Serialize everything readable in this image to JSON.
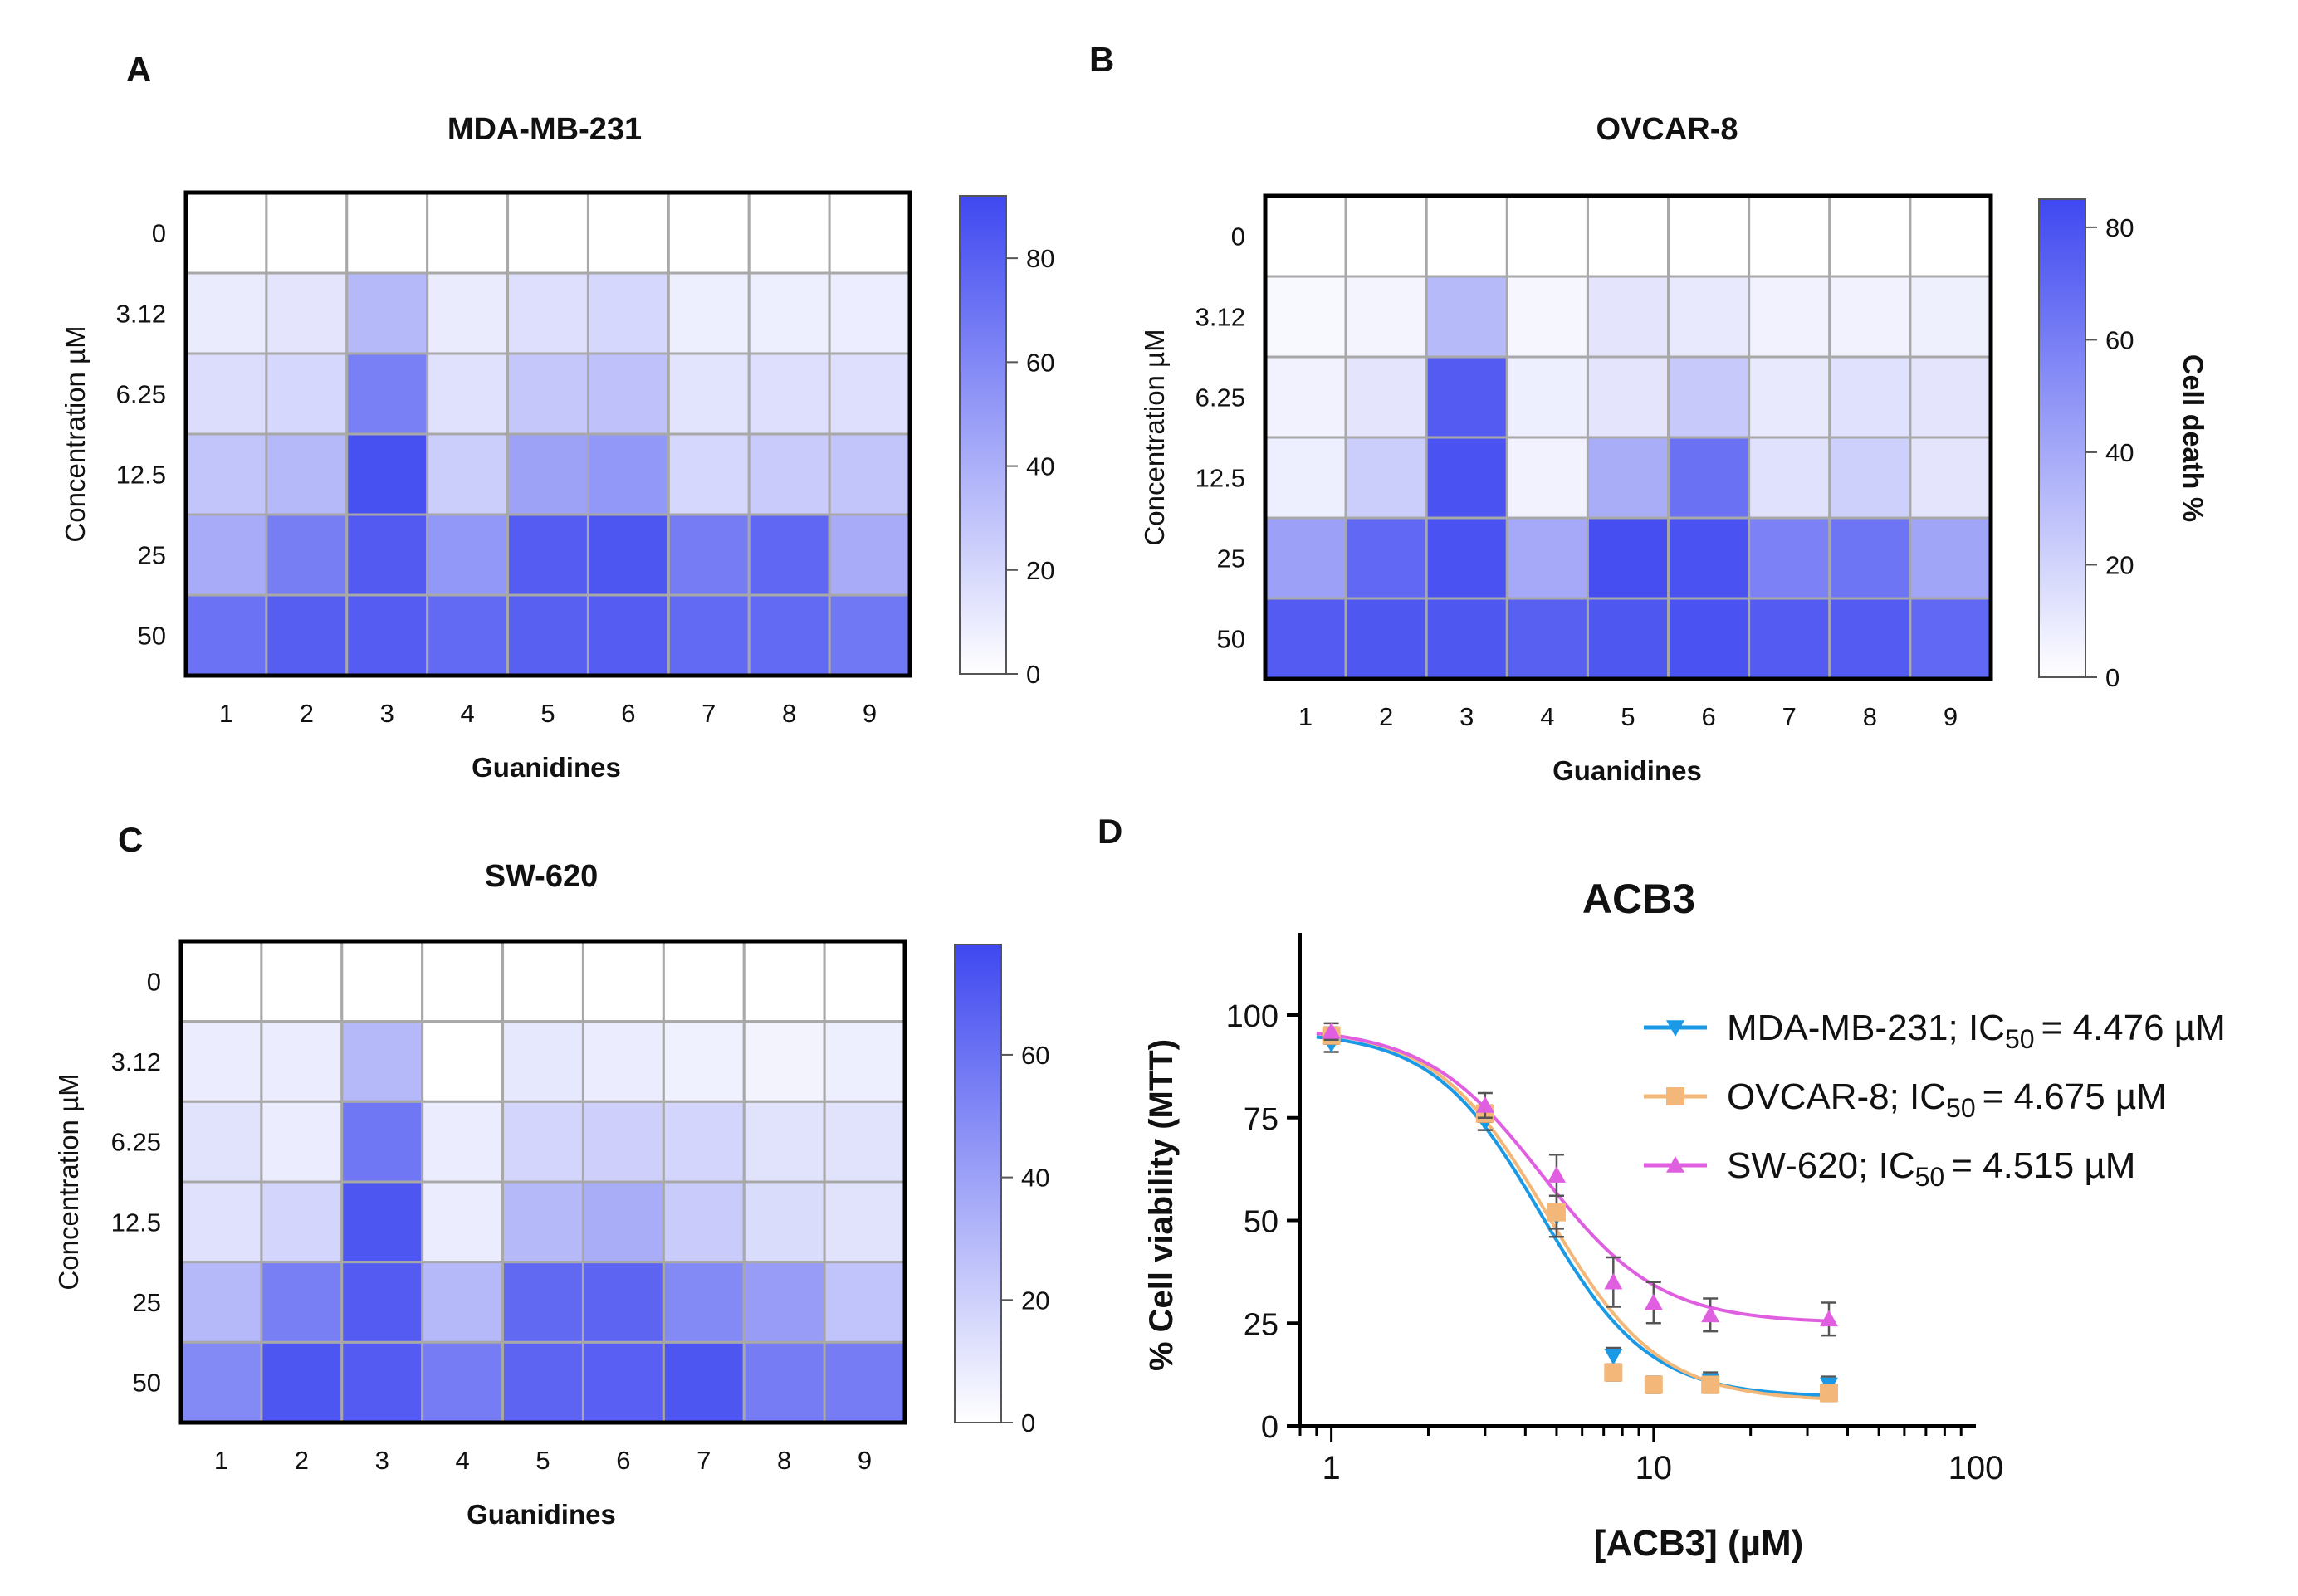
{
  "chart_data": [
    {
      "panel": "A",
      "type": "heatmap",
      "title": "MDA-MB-231",
      "xlabel": "Guanidines",
      "ylabel": "Concentration µM",
      "categories": [
        "1",
        "2",
        "3",
        "4",
        "5",
        "6",
        "7",
        "8",
        "9"
      ],
      "rows": [
        "0",
        "3.12",
        "6.25",
        "12.5",
        "25",
        "50"
      ],
      "values": [
        [
          0,
          0,
          0,
          0,
          0,
          0,
          0,
          0,
          0
        ],
        [
          10,
          13,
          35,
          10,
          16,
          20,
          8,
          8,
          9
        ],
        [
          17,
          20,
          64,
          15,
          28,
          31,
          14,
          16,
          16
        ],
        [
          29,
          35,
          88,
          25,
          47,
          52,
          20,
          26,
          29
        ],
        [
          42,
          65,
          83,
          52,
          82,
          85,
          66,
          76,
          42
        ],
        [
          71,
          81,
          82,
          75,
          80,
          82,
          75,
          75,
          68
        ]
      ],
      "colorbar": {
        "ticks": [
          "0",
          "20",
          "40",
          "60",
          "80"
        ],
        "range": [
          0,
          92
        ],
        "label": ""
      }
    },
    {
      "panel": "B",
      "type": "heatmap",
      "title": "OVCAR-8",
      "xlabel": "Guanidines",
      "ylabel": "Concentration µM",
      "categories": [
        "1",
        "2",
        "3",
        "4",
        "5",
        "6",
        "7",
        "8",
        "9"
      ],
      "rows": [
        "0",
        "3.12",
        "6.25",
        "12.5",
        "25",
        "50"
      ],
      "values": [
        [
          0,
          0,
          0,
          0,
          0,
          0,
          0,
          0,
          0
        ],
        [
          3,
          5,
          32,
          4,
          12,
          10,
          6,
          6,
          7
        ],
        [
          6,
          12,
          76,
          8,
          12,
          25,
          10,
          14,
          12
        ],
        [
          8,
          23,
          80,
          6,
          38,
          66,
          14,
          22,
          12
        ],
        [
          44,
          70,
          80,
          40,
          82,
          80,
          58,
          64,
          42
        ],
        [
          76,
          78,
          78,
          74,
          78,
          80,
          76,
          76,
          70
        ]
      ],
      "colorbar": {
        "ticks": [
          "0",
          "20",
          "40",
          "60",
          "80"
        ],
        "range": [
          0,
          85
        ],
        "label": "Cell death %"
      }
    },
    {
      "panel": "C",
      "type": "heatmap",
      "title": "SW-620",
      "xlabel": "Guanidines",
      "ylabel": "Concentration µM",
      "categories": [
        "1",
        "2",
        "3",
        "4",
        "5",
        "6",
        "7",
        "8",
        "9"
      ],
      "rows": [
        "0",
        "3.12",
        "6.25",
        "12.5",
        "25",
        "50"
      ],
      "values": [
        [
          0,
          0,
          0,
          0,
          0,
          0,
          0,
          0,
          0
        ],
        [
          8,
          8,
          30,
          0,
          10,
          8,
          6,
          5,
          7
        ],
        [
          12,
          8,
          58,
          8,
          18,
          20,
          18,
          12,
          12
        ],
        [
          13,
          18,
          72,
          8,
          30,
          35,
          22,
          15,
          12
        ],
        [
          30,
          55,
          70,
          30,
          64,
          66,
          50,
          42,
          25
        ],
        [
          50,
          72,
          70,
          56,
          66,
          68,
          72,
          56,
          56
        ]
      ],
      "colorbar": {
        "ticks": [
          "0",
          "20",
          "40",
          "60"
        ],
        "range": [
          0,
          78
        ],
        "label": ""
      }
    },
    {
      "panel": "D",
      "type": "scatter",
      "title": "ACB3",
      "xlabel": "[ACB3]  (µM)",
      "ylabel": "% Cell viability (MTT)",
      "xscale": "log",
      "xlim": [
        0.8,
        100
      ],
      "ylim": [
        0,
        120
      ],
      "xticks": [
        "1",
        "10",
        "100"
      ],
      "yticks": [
        "0",
        "25",
        "50",
        "75",
        "100"
      ],
      "legend_position": "top-right",
      "series": [
        {
          "name": "MDA-MB-231",
          "legend_text": "MDA-MB-231; IC",
          "ic50_label": "= 4.476 µM",
          "marker": "triangle-down",
          "color": "#1a9ae6",
          "x": [
            1,
            3,
            5,
            7.5,
            10,
            15,
            35
          ],
          "y": [
            93,
            74,
            51,
            17,
            10,
            11,
            10
          ],
          "err": [
            2,
            2,
            5,
            2,
            2,
            2,
            2
          ],
          "fit": {
            "top": 96,
            "bottom": 7,
            "ic50": 4.476,
            "hill": 2.6
          }
        },
        {
          "name": "OVCAR-8",
          "legend_text": "OVCAR-8; IC",
          "ic50_label": "= 4.675 µM",
          "marker": "square",
          "color": "#f3b77a",
          "x": [
            1,
            3,
            5,
            7.5,
            10,
            15,
            35
          ],
          "y": [
            95,
            76,
            52,
            13,
            10,
            10,
            8
          ],
          "err": [
            2,
            2,
            4,
            2,
            2,
            2,
            2
          ],
          "fit": {
            "top": 97,
            "bottom": 6,
            "ic50": 4.675,
            "hill": 2.5
          }
        },
        {
          "name": "SW-620",
          "legend_text": "SW-620; IC",
          "ic50_label": "= 4.515 µM",
          "marker": "triangle-up",
          "color": "#e05ee0",
          "x": [
            1,
            3,
            5,
            7.5,
            10,
            15,
            35
          ],
          "y": [
            96,
            78,
            61,
            35,
            30,
            27,
            26
          ],
          "err": [
            2,
            3,
            5,
            6,
            5,
            4,
            4
          ],
          "fit": {
            "top": 97,
            "bottom": 25,
            "ic50": 4.515,
            "hill": 2.4
          }
        }
      ]
    }
  ]
}
